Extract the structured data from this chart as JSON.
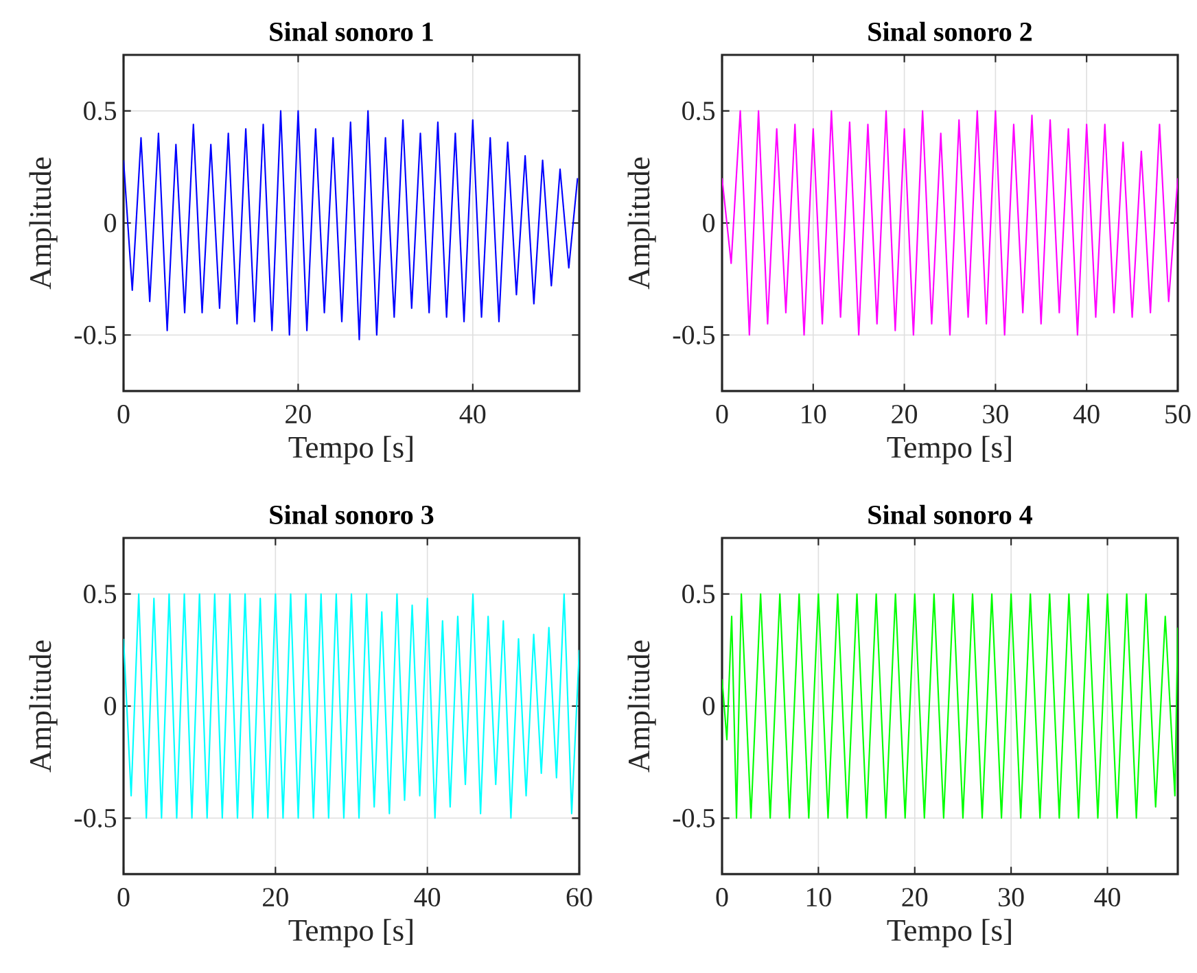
{
  "chart_data": [
    {
      "type": "line",
      "title": "Sinal sonoro 1",
      "xlabel": "Tempo [s]",
      "ylabel": "Amplitude",
      "xlim": [
        0,
        52.2
      ],
      "ylim": [
        -0.75,
        0.75
      ],
      "xticks": [
        0,
        20,
        40
      ],
      "yticks": [
        -0.5,
        0,
        0.5
      ],
      "grid": true,
      "x": [
        0,
        1,
        2,
        3,
        4,
        5,
        6,
        7,
        8,
        9,
        10,
        11,
        12,
        13,
        14,
        15,
        16,
        17,
        18,
        19,
        20,
        21,
        22,
        23,
        24,
        25,
        26,
        27,
        28,
        29,
        30,
        31,
        32,
        33,
        34,
        35,
        36,
        37,
        38,
        39,
        40,
        41,
        42,
        43,
        44,
        45,
        46,
        47,
        48,
        49,
        50,
        51,
        52
      ],
      "series": [
        {
          "color": "#0000ff",
          "values": [
            0.28,
            -0.3,
            0.38,
            -0.35,
            0.4,
            -0.48,
            0.35,
            -0.4,
            0.44,
            -0.4,
            0.35,
            -0.38,
            0.4,
            -0.45,
            0.42,
            -0.44,
            0.44,
            -0.48,
            0.5,
            -0.5,
            0.5,
            -0.48,
            0.42,
            -0.4,
            0.38,
            -0.44,
            0.45,
            -0.52,
            0.5,
            -0.5,
            0.38,
            -0.42,
            0.46,
            -0.38,
            0.4,
            -0.4,
            0.45,
            -0.42,
            0.4,
            -0.44,
            0.46,
            -0.42,
            0.38,
            -0.44,
            0.36,
            -0.32,
            0.3,
            -0.36,
            0.28,
            -0.28,
            0.24,
            -0.2,
            0.2
          ]
        }
      ]
    },
    {
      "type": "line",
      "title": "Sinal sonoro 2",
      "xlabel": "Tempo [s]",
      "ylabel": "Amplitude",
      "xlim": [
        0,
        50
      ],
      "ylim": [
        -0.75,
        0.75
      ],
      "xticks": [
        0,
        10,
        20,
        30,
        40,
        50
      ],
      "yticks": [
        -0.5,
        0,
        0.5
      ],
      "grid": true,
      "x": [
        0,
        1,
        2,
        3,
        4,
        5,
        6,
        7,
        8,
        9,
        10,
        11,
        12,
        13,
        14,
        15,
        16,
        17,
        18,
        19,
        20,
        21,
        22,
        23,
        24,
        25,
        26,
        27,
        28,
        29,
        30,
        31,
        32,
        33,
        34,
        35,
        36,
        37,
        38,
        39,
        40,
        41,
        42,
        43,
        44,
        45,
        46,
        47,
        48,
        49,
        50
      ],
      "series": [
        {
          "color": "#ff00ff",
          "values": [
            0.2,
            -0.18,
            0.5,
            -0.5,
            0.5,
            -0.45,
            0.42,
            -0.4,
            0.44,
            -0.5,
            0.42,
            -0.45,
            0.5,
            -0.42,
            0.45,
            -0.5,
            0.44,
            -0.45,
            0.5,
            -0.48,
            0.42,
            -0.5,
            0.5,
            -0.45,
            0.4,
            -0.5,
            0.46,
            -0.42,
            0.5,
            -0.45,
            0.5,
            -0.5,
            0.44,
            -0.4,
            0.48,
            -0.45,
            0.46,
            -0.4,
            0.42,
            -0.5,
            0.44,
            -0.42,
            0.44,
            -0.4,
            0.36,
            -0.42,
            0.32,
            -0.4,
            0.44,
            -0.35,
            0.2
          ]
        }
      ]
    },
    {
      "type": "line",
      "title": "Sinal sonoro 3",
      "xlabel": "Tempo [s]",
      "ylabel": "Amplitude",
      "xlim": [
        0,
        60
      ],
      "ylim": [
        -0.75,
        0.75
      ],
      "xticks": [
        0,
        20,
        40,
        60
      ],
      "yticks": [
        -0.5,
        0,
        0.5
      ],
      "grid": true,
      "x": [
        0,
        1,
        2,
        3,
        4,
        5,
        6,
        7,
        8,
        9,
        10,
        11,
        12,
        13,
        14,
        15,
        16,
        17,
        18,
        19,
        20,
        21,
        22,
        23,
        24,
        25,
        26,
        27,
        28,
        29,
        30,
        31,
        32,
        33,
        34,
        35,
        36,
        37,
        38,
        39,
        40,
        41,
        42,
        43,
        44,
        45,
        46,
        47,
        48,
        49,
        50,
        51,
        52,
        53,
        54,
        55,
        56,
        57,
        58,
        59,
        60
      ],
      "series": [
        {
          "color": "#00ffff",
          "values": [
            0.3,
            -0.4,
            0.5,
            -0.5,
            0.48,
            -0.5,
            0.5,
            -0.5,
            0.5,
            -0.5,
            0.5,
            -0.5,
            0.5,
            -0.5,
            0.5,
            -0.5,
            0.5,
            -0.5,
            0.48,
            -0.5,
            0.5,
            -0.5,
            0.5,
            -0.5,
            0.5,
            -0.5,
            0.5,
            -0.5,
            0.5,
            -0.5,
            0.5,
            -0.5,
            0.5,
            -0.45,
            0.42,
            -0.48,
            0.5,
            -0.42,
            0.45,
            -0.4,
            0.48,
            -0.5,
            0.38,
            -0.45,
            0.4,
            -0.35,
            0.5,
            -0.48,
            0.4,
            -0.35,
            0.38,
            -0.5,
            0.3,
            -0.4,
            0.32,
            -0.3,
            0.35,
            -0.32,
            0.5,
            -0.48,
            0.25
          ]
        }
      ]
    },
    {
      "type": "line",
      "title": "Sinal sonoro 4",
      "xlabel": "Tempo [s]",
      "ylabel": "Amplitude",
      "xlim": [
        0,
        47.3
      ],
      "ylim": [
        -0.75,
        0.75
      ],
      "xticks": [
        0,
        10,
        20,
        30,
        40
      ],
      "yticks": [
        -0.5,
        0,
        0.5
      ],
      "grid": true,
      "x": [
        0,
        0.5,
        1,
        1.5,
        2,
        3,
        4,
        5,
        6,
        7,
        8,
        9,
        10,
        11,
        12,
        13,
        14,
        15,
        16,
        17,
        18,
        19,
        20,
        21,
        22,
        23,
        24,
        25,
        26,
        27,
        28,
        29,
        30,
        31,
        32,
        33,
        34,
        35,
        36,
        37,
        38,
        39,
        40,
        41,
        42,
        43,
        44,
        45,
        46,
        47,
        47.3
      ],
      "series": [
        {
          "color": "#00ff00",
          "values": [
            0.12,
            -0.15,
            0.4,
            -0.5,
            0.5,
            -0.5,
            0.5,
            -0.5,
            0.5,
            -0.5,
            0.5,
            -0.5,
            0.5,
            -0.5,
            0.5,
            -0.5,
            0.5,
            -0.5,
            0.5,
            -0.5,
            0.5,
            -0.5,
            0.5,
            -0.5,
            0.5,
            -0.5,
            0.5,
            -0.5,
            0.5,
            -0.5,
            0.5,
            -0.5,
            0.5,
            -0.5,
            0.5,
            -0.5,
            0.5,
            -0.5,
            0.5,
            -0.5,
            0.5,
            -0.5,
            0.5,
            -0.5,
            0.5,
            -0.5,
            0.5,
            -0.45,
            0.4,
            -0.4,
            0.35
          ]
        }
      ]
    }
  ]
}
